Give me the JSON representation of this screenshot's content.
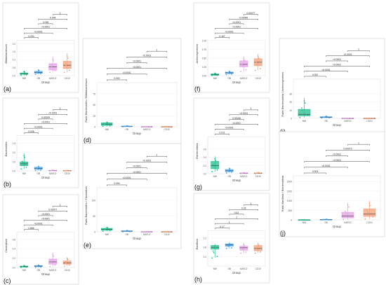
{
  "colors": {
    "NW": "#1fbf8f",
    "OB": "#4aa6f0",
    "NAFLD": "#e6a0e8",
    "CD10": "#f2a07a"
  },
  "chart_data": [
    {
      "type": "box",
      "panel": "(a)",
      "ylabel": "Bifidobacterium",
      "xlabel": "Group",
      "categories": [
        "NW",
        "OB",
        "NAFLD",
        "CD10"
      ],
      "ylim": [
        0,
        2.2
      ],
      "yticks": [
        "0.0",
        "0.5",
        "1.0",
        "1.5",
        "2.0"
      ],
      "boxes": [
        [
          0.02,
          0.08,
          0.12,
          0.17,
          0.3
        ],
        [
          0.08,
          0.15,
          0.2,
          0.27,
          0.4
        ],
        [
          0.2,
          0.35,
          0.55,
          0.75,
          1.2
        ],
        [
          0.2,
          0.45,
          0.65,
          0.9,
          1.4
        ]
      ],
      "brackets": [
        {
          "a": 0,
          "b": 1,
          "p": "0.200"
        },
        {
          "a": 0,
          "b": 2,
          "p": "<0.0001"
        },
        {
          "a": 0,
          "b": 3,
          "p": "<0.0001"
        },
        {
          "a": 1,
          "b": 2,
          "p": "0.028"
        },
        {
          "a": 1,
          "b": 3,
          "p": "0.044"
        },
        {
          "a": 2,
          "b": 3,
          "p": "1"
        }
      ]
    },
    {
      "type": "box",
      "panel": "(b)",
      "ylabel": "Bacteroides",
      "xlabel": "Group",
      "categories": [
        "NW",
        "OB",
        "NAFLD",
        "CD10"
      ],
      "ylim": [
        0,
        1.9
      ],
      "yticks": [
        "0.0",
        "0.5",
        "1.0",
        "1.5"
      ],
      "boxes": [
        [
          0.1,
          0.28,
          0.38,
          0.48,
          0.95
        ],
        [
          0.02,
          0.08,
          0.14,
          0.2,
          0.28
        ],
        [
          0.0,
          0.01,
          0.02,
          0.03,
          0.05
        ],
        [
          0.0,
          0.01,
          0.01,
          0.02,
          0.03
        ]
      ],
      "brackets": [
        {
          "a": 0,
          "b": 1,
          "p": "0.026"
        },
        {
          "a": 0,
          "b": 2,
          "p": "<0.0001"
        },
        {
          "a": 0,
          "b": 3,
          "p": "<0.0001"
        },
        {
          "a": 1,
          "b": 2,
          "p": "0.00029"
        },
        {
          "a": 1,
          "b": 3,
          "p": "<0.0001"
        },
        {
          "a": 2,
          "b": 3,
          "p": "1"
        }
      ]
    },
    {
      "type": "box",
      "panel": "(c)",
      "ylabel": "Clostridium",
      "xlabel": "Group",
      "categories": [
        "NW",
        "OB",
        "NAFLD",
        "CD10"
      ],
      "ylim": [
        0,
        0.75
      ],
      "yticks": [
        "0.0",
        "0.2",
        "0.4",
        "0.6"
      ],
      "boxes": [
        [
          0.0,
          0.01,
          0.02,
          0.03,
          0.05
        ],
        [
          0.0,
          0.02,
          0.03,
          0.04,
          0.06
        ],
        [
          0.02,
          0.07,
          0.12,
          0.18,
          0.32
        ],
        [
          0.03,
          0.07,
          0.1,
          0.14,
          0.22
        ]
      ],
      "brackets": [
        {
          "a": 0,
          "b": 1,
          "p": "0.866"
        },
        {
          "a": 0,
          "b": 2,
          "p": "<0.0001"
        },
        {
          "a": 0,
          "b": 3,
          "p": "<0.0001"
        },
        {
          "a": 1,
          "b": 2,
          "p": "<0.0001"
        },
        {
          "a": 1,
          "b": 3,
          "p": "0.00077"
        },
        {
          "a": 2,
          "b": 3,
          "p": "1"
        }
      ]
    },
    {
      "type": "box",
      "panel": "(d)",
      "ylabel": "Ratio Bacteroides / Bifidobacterium",
      "xlabel": "Group",
      "categories": [
        "NW",
        "OB",
        "NAFLD",
        "CD10"
      ],
      "ylim": [
        0,
        100
      ],
      "yticks": [
        "0",
        "25",
        "50",
        "75"
      ],
      "boxes": [
        [
          1,
          3,
          6,
          9,
          12
        ],
        [
          0,
          0.5,
          1,
          1.5,
          2.5
        ],
        [
          0,
          0,
          0.1,
          0.1,
          0.2
        ],
        [
          0,
          0,
          0.05,
          0.1,
          0.2
        ]
      ],
      "brackets": [
        {
          "a": 0,
          "b": 1,
          "p": "0.003"
        },
        {
          "a": 0,
          "b": 2,
          "p": "<0.0001"
        },
        {
          "a": 0,
          "b": 3,
          "p": "<0.0001"
        },
        {
          "a": 1,
          "b": 2,
          "p": "<0.0001"
        },
        {
          "a": 1,
          "b": 3,
          "p": "<0.0001"
        },
        {
          "a": 2,
          "b": 3,
          "p": "1"
        }
      ]
    },
    {
      "type": "box",
      "panel": "(e)",
      "ylabel": "Ratio Bacteroides / Clostridium",
      "xlabel": "Group",
      "categories": [
        "NW",
        "OB",
        "NAFLD",
        "CD10"
      ],
      "ylim": [
        0,
        140
      ],
      "yticks": [
        "0",
        "50",
        "100"
      ],
      "boxes": [
        [
          2,
          5,
          8,
          11,
          16
        ],
        [
          0,
          1,
          2,
          3,
          5
        ],
        [
          0,
          0,
          0.2,
          0.3,
          0.5
        ],
        [
          0,
          0,
          0.1,
          0.2,
          0.4
        ]
      ],
      "brackets": [
        {
          "a": 0,
          "b": 1,
          "p": "0.004"
        },
        {
          "a": 0,
          "b": 2,
          "p": "<0.0001"
        },
        {
          "a": 0,
          "b": 3,
          "p": "<0.0001"
        },
        {
          "a": 1,
          "b": 2,
          "p": "<0.0001"
        },
        {
          "a": 1,
          "b": 3,
          "p": "<0.0001"
        },
        {
          "a": 2,
          "b": 3,
          "p": "1"
        }
      ]
    },
    {
      "type": "box",
      "panel": "(f)",
      "ylabel": "Actinomycetota",
      "xlabel": "Group",
      "categories": [
        "NW",
        "OB",
        "NAFLD",
        "CD10"
      ],
      "ylim": [
        0,
        1.0
      ],
      "yticks": [
        "0.00",
        "0.25",
        "0.50",
        "0.75",
        "1.00"
      ],
      "boxes": [
        [
          0.0,
          0.01,
          0.03,
          0.05,
          0.08
        ],
        [
          0.03,
          0.06,
          0.08,
          0.1,
          0.14
        ],
        [
          0.12,
          0.25,
          0.32,
          0.42,
          0.55
        ],
        [
          0.15,
          0.28,
          0.38,
          0.48,
          0.62
        ]
      ],
      "brackets": [
        {
          "a": 0,
          "b": 1,
          "p": "0.167"
        },
        {
          "a": 0,
          "b": 2,
          "p": "<0.0001"
        },
        {
          "a": 0,
          "b": 3,
          "p": "<0.0001"
        },
        {
          "a": 1,
          "b": 2,
          "p": "<0.0001"
        },
        {
          "a": 1,
          "b": 3,
          "p": "0.00046"
        },
        {
          "a": 2,
          "b": 3,
          "p": "0.00077"
        }
      ]
    },
    {
      "type": "box",
      "panel": "(g)",
      "ylabel": "Bacteroidota",
      "xlabel": "Group",
      "categories": [
        "NW",
        "OB",
        "NAFLD",
        "CD10"
      ],
      "ylim": [
        0,
        0.9
      ],
      "yticks": [
        "0.0",
        "0.2",
        "0.4",
        "0.6"
      ],
      "boxes": [
        [
          0.05,
          0.12,
          0.2,
          0.3,
          0.42
        ],
        [
          0.02,
          0.05,
          0.07,
          0.1,
          0.15
        ],
        [
          0.0,
          0.01,
          0.01,
          0.02,
          0.03
        ],
        [
          0.0,
          0.01,
          0.01,
          0.02,
          0.03
        ]
      ],
      "brackets": [
        {
          "a": 0,
          "b": 1,
          "p": "0.011"
        },
        {
          "a": 0,
          "b": 2,
          "p": "<0.0001"
        },
        {
          "a": 0,
          "b": 3,
          "p": "<0.0001"
        },
        {
          "a": 1,
          "b": 2,
          "p": "0.00046"
        },
        {
          "a": 1,
          "b": 3,
          "p": "<0.0001"
        },
        {
          "a": 2,
          "b": 3,
          "p": "1"
        }
      ]
    },
    {
      "type": "box",
      "panel": "(h)",
      "ylabel": "Bacillota",
      "xlabel": "Group",
      "categories": [
        "NW",
        "OB",
        "NAFLD",
        "CD10"
      ],
      "ylim": [
        0,
        1.5
      ],
      "yticks": [
        "0.4",
        "0.8",
        "1.2"
      ],
      "boxes": [
        [
          0.35,
          0.72,
          0.8,
          0.88,
          0.95
        ],
        [
          0.75,
          0.85,
          0.9,
          0.95,
          1.0
        ],
        [
          0.55,
          0.68,
          0.78,
          0.85,
          0.98
        ],
        [
          0.55,
          0.65,
          0.75,
          0.88,
          1.0
        ]
      ],
      "brackets": [
        {
          "a": 0,
          "b": 1,
          "p": "0.17"
        },
        {
          "a": 0,
          "b": 2,
          "p": "1"
        },
        {
          "a": 0,
          "b": 3,
          "p": "1"
        },
        {
          "a": 1,
          "b": 2,
          "p": "0.42"
        },
        {
          "a": 1,
          "b": 3,
          "p": "0.29"
        },
        {
          "a": 2,
          "b": 3,
          "p": "1"
        }
      ]
    },
    {
      "type": "box",
      "panel": "(i)",
      "ylabel": "Ratio Bacteroidota / Actinomycetota",
      "xlabel": "Group",
      "categories": [
        "NW",
        "OB",
        "NAFLD",
        "CD10"
      ],
      "ylim": [
        0,
        48
      ],
      "yticks": [
        "0",
        "10",
        "20",
        "30"
      ],
      "boxes": [
        [
          1,
          3,
          5,
          11,
          25
        ],
        [
          0.5,
          1,
          1.5,
          2,
          3
        ],
        [
          0,
          0,
          0.05,
          0.1,
          0.2
        ],
        [
          0,
          0,
          0.05,
          0.1,
          0.2
        ]
      ],
      "brackets": [
        {
          "a": 0,
          "b": 1,
          "p": "0.002"
        },
        {
          "a": 0,
          "b": 2,
          "p": "<0.0001"
        },
        {
          "a": 0,
          "b": 3,
          "p": "<0.0001"
        },
        {
          "a": 1,
          "b": 2,
          "p": "<0.0001"
        },
        {
          "a": 1,
          "b": 3,
          "p": "<0.0001"
        },
        {
          "a": 2,
          "b": 3,
          "p": "1"
        }
      ]
    },
    {
      "type": "box",
      "panel": "(j)",
      "ylabel": "Ratio Bacillota / Bacteroidota",
      "xlabel": "Group",
      "categories": [
        "NW",
        "OB",
        "NAFLD",
        "CD10"
      ],
      "ylim": [
        0,
        2300
      ],
      "yticks": [
        "0",
        "500",
        "1000",
        "1500",
        "2000"
      ],
      "boxes": [
        [
          0,
          1,
          2,
          4,
          8
        ],
        [
          2,
          8,
          12,
          20,
          40
        ],
        [
          20,
          100,
          200,
          400,
          900
        ],
        [
          50,
          180,
          300,
          580,
          1000
        ]
      ],
      "brackets": [
        {
          "a": 0,
          "b": 1,
          "p": "0.003"
        },
        {
          "a": 0,
          "b": 2,
          "p": "<0.0001"
        },
        {
          "a": 0,
          "b": 3,
          "p": "<0.0001"
        },
        {
          "a": 1,
          "b": 2,
          "p": "<0.0001"
        },
        {
          "a": 1,
          "b": 3,
          "p": "0.00073"
        },
        {
          "a": 2,
          "b": 3,
          "p": "1"
        }
      ]
    }
  ]
}
